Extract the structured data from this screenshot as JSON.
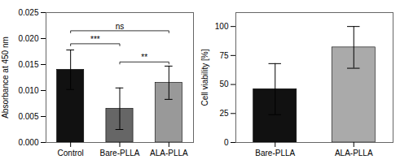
{
  "chart_data": [
    {
      "type": "bar",
      "categories": [
        "Control",
        "Bare-PLLA",
        "ALA-PLLA"
      ],
      "values": [
        0.014,
        0.0065,
        0.0115
      ],
      "errors": [
        0.0038,
        0.004,
        0.0032
      ],
      "colors": [
        "#111111",
        "#666666",
        "#999999"
      ],
      "ylabel": "Absorbance at 450 nm",
      "ylim": [
        0,
        0.025
      ],
      "yticks": [
        {
          "value": 0,
          "label": "0.000"
        },
        {
          "value": 0.005,
          "label": "0.005"
        },
        {
          "value": 0.01,
          "label": "0.010"
        },
        {
          "value": 0.015,
          "label": "0.015"
        },
        {
          "value": 0.02,
          "label": "0.020"
        },
        {
          "value": 0.025,
          "label": "0.025"
        }
      ],
      "annotations": [
        {
          "from": "Control",
          "to": "Bare-PLLA",
          "y": 0.019,
          "text": "***"
        },
        {
          "from": "Bare-PLLA",
          "to": "ALA-PLLA",
          "y": 0.0155,
          "text": "**"
        },
        {
          "from": "Control",
          "to": "ALA-PLLA",
          "y": 0.0215,
          "text": "ns"
        }
      ]
    },
    {
      "type": "bar",
      "categories": [
        "Bare-PLLA",
        "ALA-PLLA"
      ],
      "values": [
        46,
        82
      ],
      "errors": [
        22,
        18
      ],
      "colors": [
        "#111111",
        "#aaaaaa"
      ],
      "ylabel": "Cell viability [%]",
      "ylim": [
        0,
        112
      ],
      "yticks": [
        0,
        25,
        50,
        75,
        100
      ]
    }
  ]
}
